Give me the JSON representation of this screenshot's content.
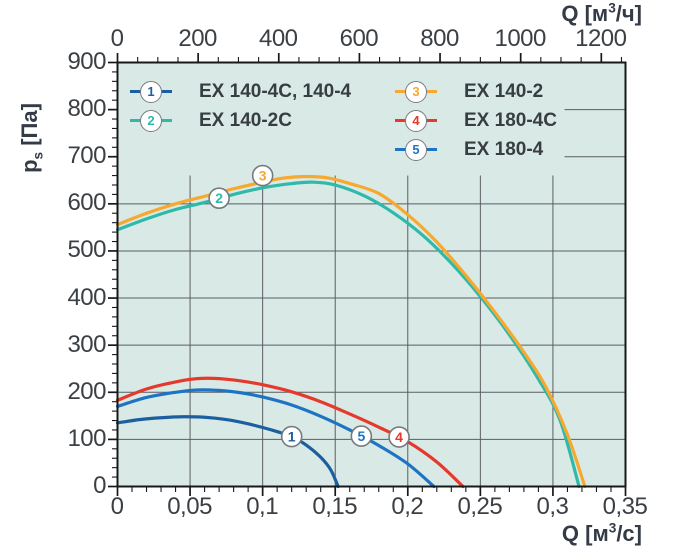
{
  "labels": {
    "top_title": {
      "base": "Q [м",
      "sup": "3",
      "rest": "/ч]"
    },
    "bottom_title": {
      "base": "Q [м",
      "sup": "3",
      "rest": "/с]"
    },
    "y_title": {
      "base": "p",
      "sub": "s",
      "rest": " [Па]"
    }
  },
  "colors": {
    "plot_bg": "#d9eae6",
    "grid": "#595d62",
    "frame": "#17181a",
    "tick_text": "#3b4045",
    "axis_title": "#333b47",
    "marker_border": "#767b80"
  },
  "legend": {
    "columns": [
      [
        "s1",
        "s2"
      ],
      [
        "s3",
        "s4",
        "s5"
      ]
    ]
  },
  "chart_data": {
    "type": "line",
    "title": "",
    "x_axis_bottom": {
      "title": "Q [м³/с]",
      "range": [
        0,
        0.35
      ],
      "ticks": [
        0,
        0.05,
        0.1,
        0.15,
        0.2,
        0.25,
        0.3,
        0.35
      ],
      "tick_labels": [
        "0",
        "0,05",
        "0,1",
        "0,15",
        "0,2",
        "0,25",
        "0,3",
        "0,35"
      ],
      "minor_step": 0.01
    },
    "x_axis_top": {
      "title": "Q [м³/ч]",
      "range": [
        0,
        1260
      ],
      "unit_scale_to_bottom": 3600,
      "ticks": [
        0,
        200,
        400,
        600,
        800,
        1000,
        1200
      ],
      "minor_step": 50
    },
    "y_axis": {
      "title": "pₛ [Па]",
      "range": [
        0,
        900
      ],
      "ticks": [
        0,
        100,
        200,
        300,
        400,
        500,
        600,
        700,
        800,
        900
      ],
      "minor_step": 20
    },
    "grid": {
      "vertical_step": 0.05,
      "horizontal_step": 100,
      "visible": true
    },
    "legend_position": "top-left-inside",
    "series": [
      {
        "id": "s1",
        "num": "1",
        "name": "EX 140-4C, 140-4",
        "color": "#1c5fa0",
        "marker": {
          "q": 0.12,
          "p": 106
        },
        "points": [
          [
            0,
            135
          ],
          [
            0.015,
            142
          ],
          [
            0.03,
            146
          ],
          [
            0.045,
            148
          ],
          [
            0.06,
            147
          ],
          [
            0.075,
            142
          ],
          [
            0.09,
            133
          ],
          [
            0.105,
            121
          ],
          [
            0.12,
            106
          ],
          [
            0.13,
            88
          ],
          [
            0.14,
            62
          ],
          [
            0.147,
            35
          ],
          [
            0.152,
            0
          ]
        ]
      },
      {
        "id": "s2",
        "num": "2",
        "name": "EX 140-2C",
        "color": "#2fb9aa",
        "marker": {
          "q": 0.07,
          "p": 612
        },
        "points": [
          [
            0,
            545
          ],
          [
            0.02,
            568
          ],
          [
            0.04,
            588
          ],
          [
            0.06,
            603
          ],
          [
            0.08,
            620
          ],
          [
            0.1,
            634
          ],
          [
            0.12,
            643
          ],
          [
            0.135,
            646
          ],
          [
            0.15,
            640
          ],
          [
            0.17,
            617
          ],
          [
            0.19,
            581
          ],
          [
            0.21,
            534
          ],
          [
            0.23,
            474
          ],
          [
            0.25,
            403
          ],
          [
            0.27,
            322
          ],
          [
            0.29,
            228
          ],
          [
            0.305,
            140
          ],
          [
            0.318,
            0
          ]
        ]
      },
      {
        "id": "s3",
        "num": "3",
        "name": "EX 140-2",
        "color": "#f7a82e",
        "marker": {
          "q": 0.1,
          "p": 660
        },
        "points": [
          [
            0,
            556
          ],
          [
            0.02,
            580
          ],
          [
            0.04,
            600
          ],
          [
            0.06,
            616
          ],
          [
            0.08,
            632
          ],
          [
            0.1,
            646
          ],
          [
            0.115,
            655
          ],
          [
            0.13,
            658
          ],
          [
            0.145,
            655
          ],
          [
            0.16,
            643
          ],
          [
            0.18,
            622
          ],
          [
            0.2,
            577
          ],
          [
            0.22,
            519
          ],
          [
            0.24,
            448
          ],
          [
            0.26,
            370
          ],
          [
            0.28,
            285
          ],
          [
            0.295,
            212
          ],
          [
            0.31,
            110
          ],
          [
            0.322,
            0
          ]
        ]
      },
      {
        "id": "s4",
        "num": "4",
        "name": "EX 180-4C",
        "color": "#e6392e",
        "marker": {
          "q": 0.194,
          "p": 105
        },
        "points": [
          [
            0,
            183
          ],
          [
            0.02,
            207
          ],
          [
            0.04,
            222
          ],
          [
            0.055,
            229
          ],
          [
            0.07,
            229
          ],
          [
            0.085,
            224
          ],
          [
            0.1,
            216
          ],
          [
            0.12,
            201
          ],
          [
            0.14,
            180
          ],
          [
            0.16,
            154
          ],
          [
            0.18,
            126
          ],
          [
            0.2,
            95
          ],
          [
            0.22,
            52
          ],
          [
            0.238,
            0
          ]
        ]
      },
      {
        "id": "s5",
        "num": "5",
        "name": "EX 180-4",
        "color": "#1e74c2",
        "marker": {
          "q": 0.168,
          "p": 107
        },
        "points": [
          [
            0,
            170
          ],
          [
            0.02,
            189
          ],
          [
            0.04,
            200
          ],
          [
            0.055,
            205
          ],
          [
            0.07,
            204
          ],
          [
            0.085,
            199
          ],
          [
            0.1,
            190
          ],
          [
            0.12,
            173
          ],
          [
            0.14,
            149
          ],
          [
            0.16,
            120
          ],
          [
            0.18,
            87
          ],
          [
            0.2,
            48
          ],
          [
            0.218,
            0
          ]
        ]
      }
    ]
  }
}
